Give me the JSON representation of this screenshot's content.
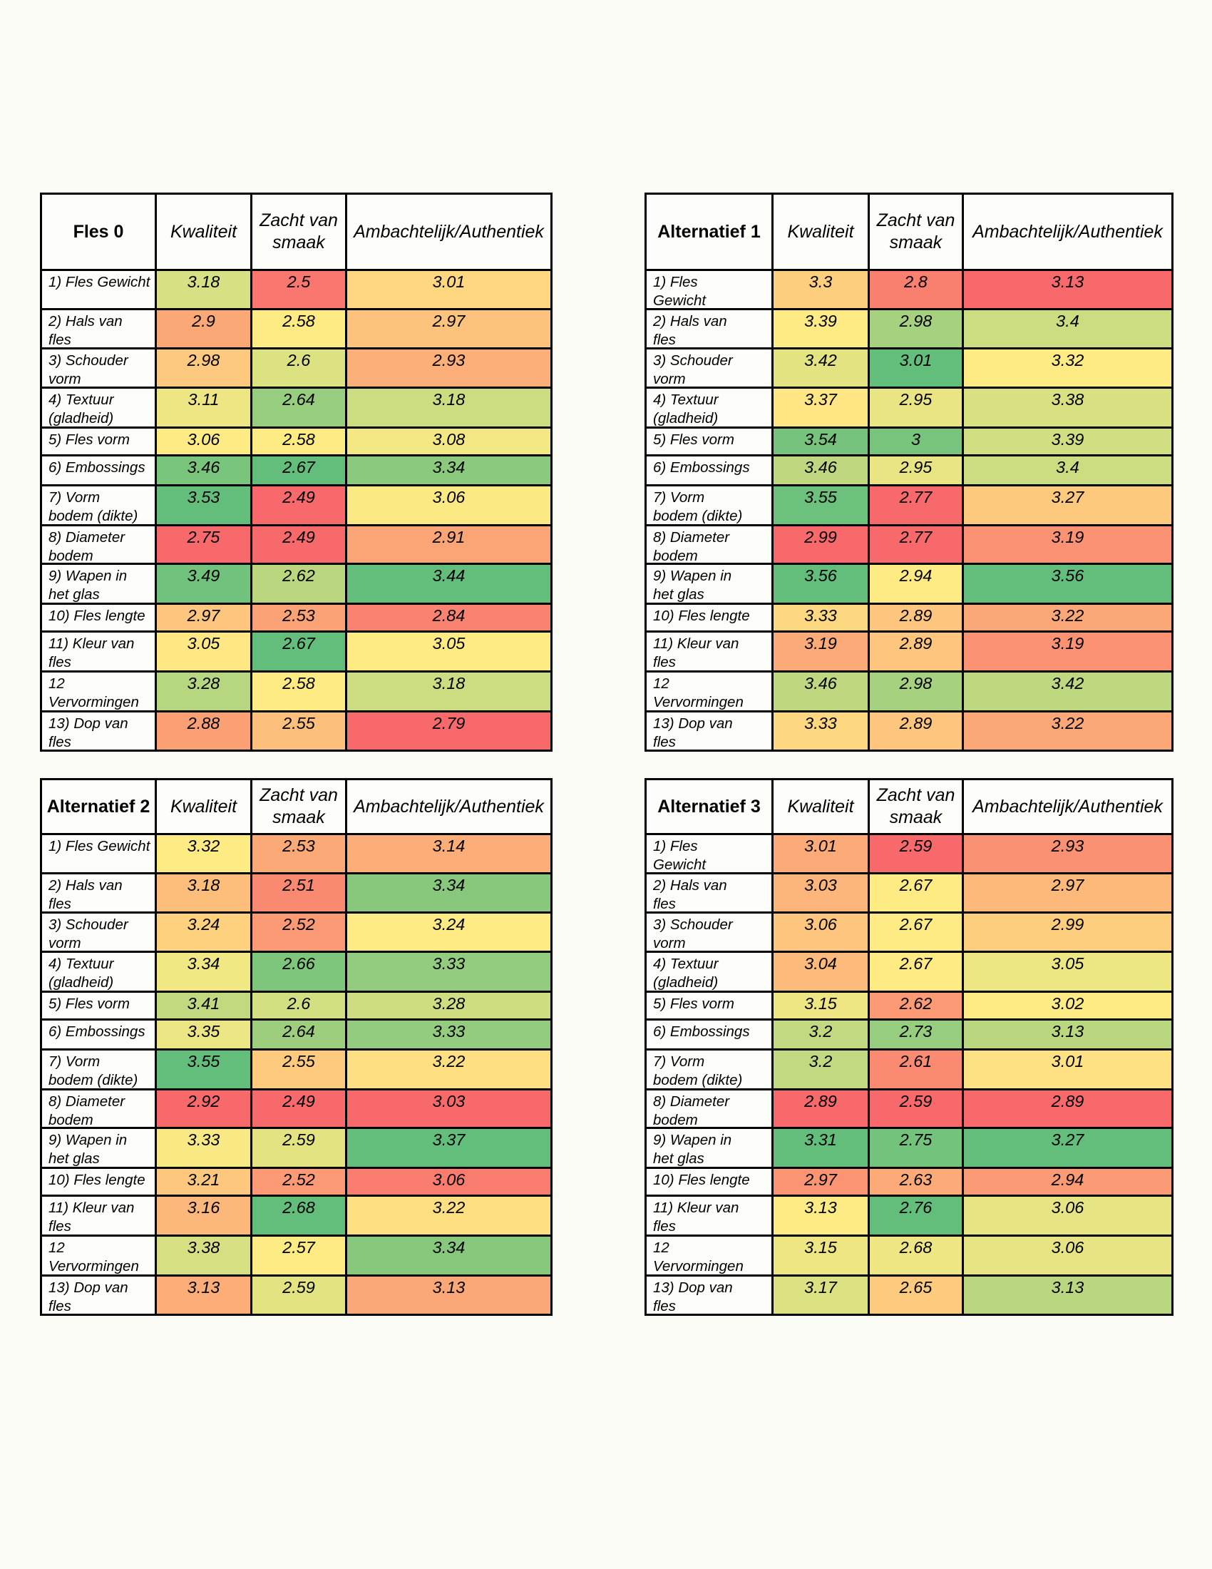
{
  "page": {
    "background": "#FBFBF6",
    "cell_background": "#FDFDF9",
    "grid_color": "#000000",
    "text_color": "#000000"
  },
  "heat_scale": {
    "type": "3-color-scale",
    "min_color": "#F8696B",
    "mid_color": "#FFEB84",
    "max_color": "#63BE7B",
    "midpoint": "50th percentile per column"
  },
  "chart_data": [
    {
      "type": "heatmap",
      "title": "Fles 0",
      "columns": [
        "Kwaliteit",
        "Zacht van\nsmaak",
        "Ambachtelijk/Authentiek"
      ],
      "rows": [
        "1) Fles Gewicht",
        "2) Hals van\nfles",
        "3) Schouder\nvorm",
        "4) Textuur\n(gladheid)",
        "5) Fles vorm",
        "6) Embossings",
        "7) Vorm\nbodem (dikte)",
        "8) Diameter\nbodem",
        "9) Wapen in\nhet glas",
        "10) Fles lengte",
        "11) Kleur van\nfles",
        "12\nVervormingen",
        "13) Dop van\nfles"
      ],
      "series": [
        {
          "name": "Kwaliteit",
          "values": [
            "3.18",
            "2.9",
            "2.98",
            "3.11",
            "3.06",
            "3.46",
            "3.53",
            "2.75",
            "3.49",
            "2.97",
            "3.05",
            "3.28",
            "2.88"
          ]
        },
        {
          "name": "Zacht van smaak",
          "values": [
            "2.5",
            "2.58",
            "2.6",
            "2.64",
            "2.58",
            "2.67",
            "2.49",
            "2.49",
            "2.62",
            "2.53",
            "2.67",
            "2.58",
            "2.55"
          ]
        },
        {
          "name": "Ambachtelijk/Authentiek",
          "values": [
            "3.01",
            "2.97",
            "2.93",
            "3.18",
            "3.08",
            "3.34",
            "3.06",
            "2.91",
            "3.44",
            "2.84",
            "3.05",
            "3.18",
            "2.79"
          ]
        }
      ]
    },
    {
      "type": "heatmap",
      "title": "Alternatief 1",
      "columns": [
        "Kwaliteit",
        "Zacht van\nsmaak",
        "Ambachtelijk/Authentiek"
      ],
      "rows": [
        "1) Fles\nGewicht",
        "2) Hals van\nfles",
        "3) Schouder\nvorm",
        "4) Textuur\n(gladheid)",
        "5) Fles vorm",
        "6) Embossings",
        "7) Vorm\nbodem (dikte)",
        "8) Diameter\nbodem",
        "9) Wapen in\nhet glas",
        "10) Fles lengte",
        "11) Kleur van\nfles",
        "12\nVervormingen",
        "13) Dop van\nfles"
      ],
      "series": [
        {
          "name": "Kwaliteit",
          "values": [
            "3.3",
            "3.39",
            "3.42",
            "3.37",
            "3.54",
            "3.46",
            "3.55",
            "2.99",
            "3.56",
            "3.33",
            "3.19",
            "3.46",
            "3.33"
          ]
        },
        {
          "name": "Zacht van smaak",
          "values": [
            "2.8",
            "2.98",
            "3.01",
            "2.95",
            "3",
            "2.95",
            "2.77",
            "2.77",
            "2.94",
            "2.89",
            "2.89",
            "2.98",
            "2.89"
          ]
        },
        {
          "name": "Ambachtelijk/Authentiek",
          "values": [
            "3.13",
            "3.4",
            "3.32",
            "3.38",
            "3.39",
            "3.4",
            "3.27",
            "3.19",
            "3.56",
            "3.22",
            "3.19",
            "3.42",
            "3.22"
          ]
        }
      ]
    },
    {
      "type": "heatmap",
      "title": "Alternatief 2",
      "columns": [
        "Kwaliteit",
        "Zacht van\nsmaak",
        "Ambachtelijk/Authentiek"
      ],
      "rows": [
        "1) Fles Gewicht",
        "2) Hals van\nfles",
        "3) Schouder\nvorm",
        "4) Textuur\n(gladheid)",
        "5) Fles vorm",
        "6) Embossings",
        "7) Vorm\nbodem (dikte)",
        "8) Diameter\nbodem",
        "9) Wapen in\nhet glas",
        "10) Fles lengte",
        "11) Kleur van\nfles",
        "12\nVervormingen",
        "13) Dop van\nfles"
      ],
      "series": [
        {
          "name": "Kwaliteit",
          "values": [
            "3.32",
            "3.18",
            "3.24",
            "3.34",
            "3.41",
            "3.35",
            "3.55",
            "2.92",
            "3.33",
            "3.21",
            "3.16",
            "3.38",
            "3.13"
          ]
        },
        {
          "name": "Zacht van smaak",
          "values": [
            "2.53",
            "2.51",
            "2.52",
            "2.66",
            "2.6",
            "2.64",
            "2.55",
            "2.49",
            "2.59",
            "2.52",
            "2.68",
            "2.57",
            "2.59"
          ]
        },
        {
          "name": "Ambachtelijk/Authentiek",
          "values": [
            "3.14",
            "3.34",
            "3.24",
            "3.33",
            "3.28",
            "3.33",
            "3.22",
            "3.03",
            "3.37",
            "3.06",
            "3.22",
            "3.34",
            "3.13"
          ]
        }
      ]
    },
    {
      "type": "heatmap",
      "title": "Alternatief 3",
      "columns": [
        "Kwaliteit",
        "Zacht van\nsmaak",
        "Ambachtelijk/Authentiek"
      ],
      "rows": [
        "1) Fles\nGewicht",
        "2) Hals van\nfles",
        "3) Schouder\nvorm",
        "4) Textuur\n(gladheid)",
        "5) Fles vorm",
        "6) Embossings",
        "7) Vorm\nbodem (dikte)",
        "8) Diameter\nbodem",
        "9) Wapen in\nhet glas",
        "10) Fles lengte",
        "11) Kleur van\nfles",
        "12\nVervormingen",
        "13) Dop van\nfles"
      ],
      "series": [
        {
          "name": "Kwaliteit",
          "values": [
            "3.01",
            "3.03",
            "3.06",
            "3.04",
            "3.15",
            "3.2",
            "3.2",
            "2.89",
            "3.31",
            "2.97",
            "3.13",
            "3.15",
            "3.17"
          ]
        },
        {
          "name": "Zacht van smaak",
          "values": [
            "2.59",
            "2.67",
            "2.67",
            "2.67",
            "2.62",
            "2.73",
            "2.61",
            "2.59",
            "2.75",
            "2.63",
            "2.76",
            "2.68",
            "2.65"
          ]
        },
        {
          "name": "Ambachtelijk/Authentiek",
          "values": [
            "2.93",
            "2.97",
            "2.99",
            "3.05",
            "3.02",
            "3.13",
            "3.01",
            "2.89",
            "3.27",
            "2.94",
            "3.06",
            "3.06",
            "3.13"
          ]
        }
      ]
    }
  ]
}
